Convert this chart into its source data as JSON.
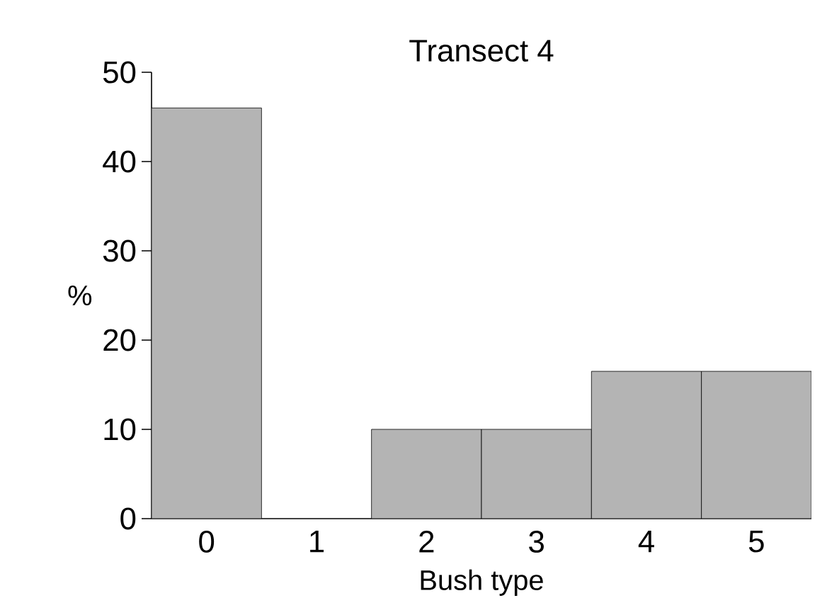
{
  "chart_data": {
    "type": "bar",
    "title": "Transect 4",
    "xlabel": "Bush type",
    "ylabel": "%",
    "categories": [
      "0",
      "1",
      "2",
      "3",
      "4",
      "5"
    ],
    "values": [
      46,
      0,
      10,
      10,
      16.5,
      16.5
    ],
    "color": "#b4b4b4",
    "ylim": [
      0,
      50
    ],
    "yticks": [
      0,
      10,
      20,
      30,
      40,
      50
    ],
    "grid": false
  }
}
